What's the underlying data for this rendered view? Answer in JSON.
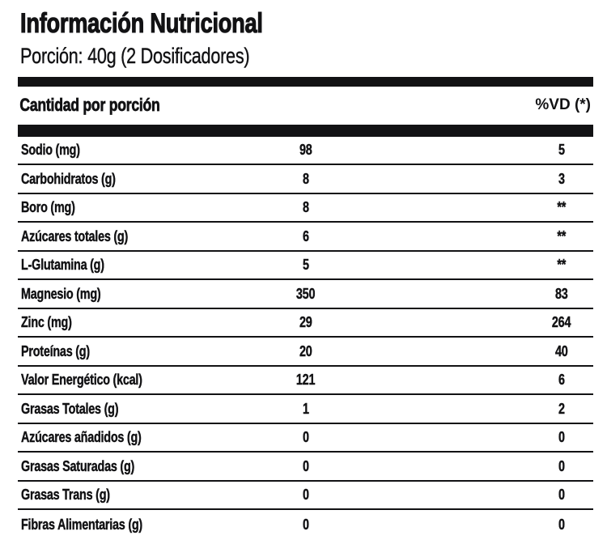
{
  "panel": {
    "title": "Información Nutricional",
    "serving": "Porción: 40g (2 Dosificadores)",
    "colors": {
      "ink": "#121214",
      "background": "#ffffff"
    },
    "table": {
      "header": {
        "amount_col": "Cantidad por porción",
        "vd_col": "%VD (*)"
      },
      "rows": [
        {
          "label": "Sodio (mg)",
          "amount": "98",
          "vd": "5"
        },
        {
          "label": "Carbohidratos (g)",
          "amount": "8",
          "vd": "3"
        },
        {
          "label": "Boro (mg)",
          "amount": "8",
          "vd": "**"
        },
        {
          "label": "Azúcares totales (g)",
          "amount": "6",
          "vd": "**"
        },
        {
          "label": "L-Glutamina (g)",
          "amount": "5",
          "vd": "**"
        },
        {
          "label": "Magnesio (mg)",
          "amount": "350",
          "vd": "83"
        },
        {
          "label": "Zinc (mg)",
          "amount": "29",
          "vd": "264"
        },
        {
          "label": "Proteínas (g)",
          "amount": "20",
          "vd": "40"
        },
        {
          "label": "Valor Energético (kcal)",
          "amount": "121",
          "vd": "6"
        },
        {
          "label": "Grasas Totales (g)",
          "amount": "1",
          "vd": "2"
        },
        {
          "label": "Azúcares añadidos (g)",
          "amount": "0",
          "vd": "0"
        },
        {
          "label": "Grasas Saturadas (g)",
          "amount": "0",
          "vd": "0"
        },
        {
          "label": "Grasas Trans (g)",
          "amount": "0",
          "vd": "0"
        },
        {
          "label": "Fibras Alimentarias (g)",
          "amount": "0",
          "vd": "0"
        }
      ]
    }
  }
}
